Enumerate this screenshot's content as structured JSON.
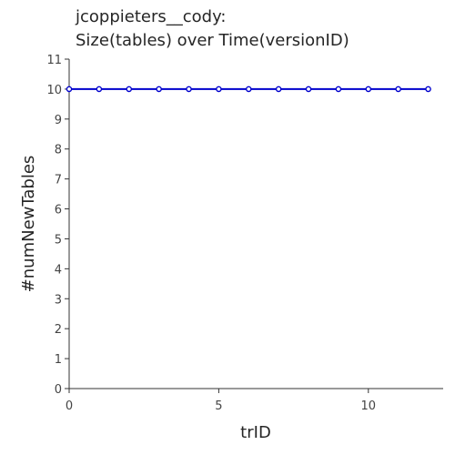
{
  "chart_data": {
    "type": "line",
    "title_lines": [
      "jcoppieters__cody:",
      "Size(tables) over Time(versionID)"
    ],
    "xlabel": "trID",
    "ylabel": "#numNewTables",
    "xlim": [
      0,
      12.5
    ],
    "ylim": [
      0,
      11
    ],
    "xticks": [
      0,
      5,
      10
    ],
    "yticks": [
      0,
      1,
      2,
      3,
      4,
      5,
      6,
      7,
      8,
      9,
      10,
      11
    ],
    "grid": false,
    "series": [
      {
        "color": "#0000cc",
        "marker": "circle",
        "x": [
          0,
          1,
          2,
          3,
          4,
          5,
          6,
          7,
          8,
          9,
          10,
          11,
          12
        ],
        "y": [
          10,
          10,
          10,
          10,
          10,
          10,
          10,
          10,
          10,
          10,
          10,
          10,
          10
        ]
      }
    ]
  }
}
